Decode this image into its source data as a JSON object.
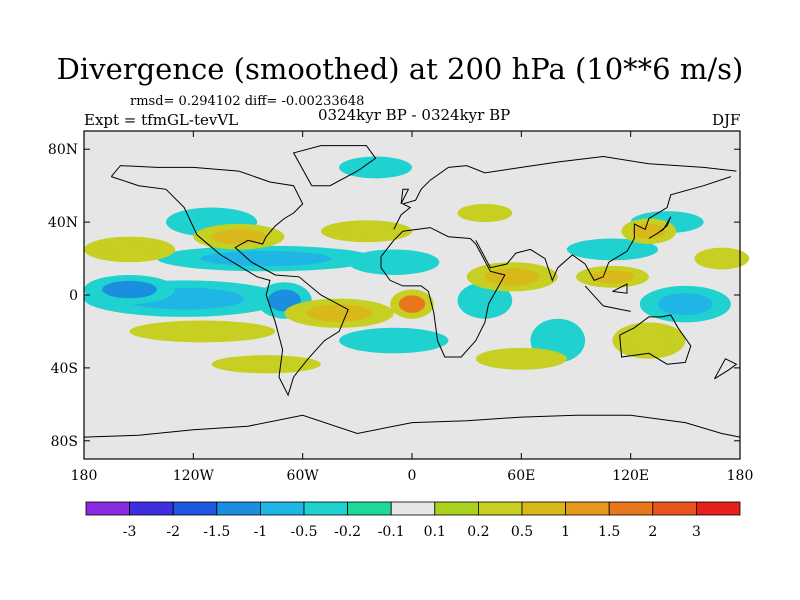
{
  "header": {
    "title": "Divergence (smoothed) at 200 hPa (10**6 m/s)",
    "stats": "rmsd= 0.294102 diff= -0.00233648",
    "expt": "Expt = tfmGL-tevVL",
    "period": "0324kyr BP - 0324kyr BP",
    "season": "DJF"
  },
  "colors": {
    "land_background": "#e6e6e6",
    "coastline": "#000000",
    "levels": [
      "#8a2be2",
      "#3d2fe0",
      "#1f58e0",
      "#1a8fe0",
      "#1fb6e6",
      "#1fd2cf",
      "#1ed89a",
      "#e6e6e6",
      "#a8d21e",
      "#c6cf22",
      "#d9b81c",
      "#e69a1c",
      "#e8771c",
      "#e9531c",
      "#e6201c"
    ]
  },
  "chart_data": {
    "type": "heatmap",
    "title": "Divergence (smoothed) at 200 hPa (10**6 m/s)",
    "xlabel": "",
    "ylabel": "",
    "xlim": [
      -180,
      180
    ],
    "ylim": [
      -90,
      90
    ],
    "x_ticks": [
      {
        "value": -180,
        "label": "180"
      },
      {
        "value": -120,
        "label": "120W"
      },
      {
        "value": -60,
        "label": "60W"
      },
      {
        "value": 0,
        "label": "0"
      },
      {
        "value": 60,
        "label": "60E"
      },
      {
        "value": 120,
        "label": "120E"
      },
      {
        "value": 180,
        "label": "180"
      }
    ],
    "y_ticks": [
      {
        "value": 80,
        "label": "80N"
      },
      {
        "value": 40,
        "label": "40N"
      },
      {
        "value": 0,
        "label": "0"
      },
      {
        "value": -40,
        "label": "40S"
      },
      {
        "value": -80,
        "label": "80S"
      }
    ],
    "colorbar": {
      "labels": [
        "-3",
        "-2",
        "-1.5",
        "-1",
        "-0.5",
        "-0.2",
        "-0.1",
        "0.1",
        "0.2",
        "0.5",
        "1",
        "1.5",
        "2",
        "3"
      ]
    },
    "regions": [
      {
        "lon": -125,
        "lat": -2,
        "rx": 55,
        "ry": 10,
        "value": -0.8
      },
      {
        "lon": -155,
        "lat": 3,
        "rx": 25,
        "ry": 8,
        "value": -1.2
      },
      {
        "lon": -70,
        "lat": -3,
        "rx": 15,
        "ry": 10,
        "value": -1.2
      },
      {
        "lon": -80,
        "lat": 20,
        "rx": 60,
        "ry": 7,
        "value": -0.6
      },
      {
        "lon": -10,
        "lat": 18,
        "rx": 25,
        "ry": 7,
        "value": -0.5
      },
      {
        "lon": 40,
        "lat": -3,
        "rx": 15,
        "ry": 10,
        "value": -0.5
      },
      {
        "lon": 110,
        "lat": 25,
        "rx": 25,
        "ry": 6,
        "value": -0.5
      },
      {
        "lon": 150,
        "lat": -5,
        "rx": 25,
        "ry": 10,
        "value": -1.0
      },
      {
        "lon": 140,
        "lat": 40,
        "rx": 20,
        "ry": 6,
        "value": -0.3
      },
      {
        "lon": -110,
        "lat": 40,
        "rx": 25,
        "ry": 8,
        "value": -0.5
      },
      {
        "lon": -20,
        "lat": 70,
        "rx": 20,
        "ry": 6,
        "value": -0.3
      },
      {
        "lon": -10,
        "lat": -25,
        "rx": 30,
        "ry": 7,
        "value": -0.4
      },
      {
        "lon": 80,
        "lat": -25,
        "rx": 15,
        "ry": 12,
        "value": -0.4
      },
      {
        "lon": -155,
        "lat": 25,
        "rx": 25,
        "ry": 7,
        "value": 0.4
      },
      {
        "lon": -95,
        "lat": 32,
        "rx": 25,
        "ry": 7,
        "value": 0.6
      },
      {
        "lon": -25,
        "lat": 35,
        "rx": 25,
        "ry": 6,
        "value": 0.4
      },
      {
        "lon": -40,
        "lat": -10,
        "rx": 30,
        "ry": 8,
        "value": 0.5
      },
      {
        "lon": 0,
        "lat": -5,
        "rx": 12,
        "ry": 8,
        "value": 1.5
      },
      {
        "lon": -115,
        "lat": -20,
        "rx": 40,
        "ry": 6,
        "value": 0.3
      },
      {
        "lon": -80,
        "lat": -38,
        "rx": 30,
        "ry": 5,
        "value": 0.2
      },
      {
        "lon": 55,
        "lat": 10,
        "rx": 25,
        "ry": 8,
        "value": 0.5
      },
      {
        "lon": 110,
        "lat": 10,
        "rx": 20,
        "ry": 6,
        "value": 0.6
      },
      {
        "lon": 130,
        "lat": 35,
        "rx": 15,
        "ry": 7,
        "value": 0.5
      },
      {
        "lon": 130,
        "lat": -25,
        "rx": 20,
        "ry": 10,
        "value": 0.4
      },
      {
        "lon": 170,
        "lat": 20,
        "rx": 15,
        "ry": 6,
        "value": 0.3
      },
      {
        "lon": 60,
        "lat": -35,
        "rx": 25,
        "ry": 6,
        "value": 0.3
      },
      {
        "lon": 40,
        "lat": 45,
        "rx": 15,
        "ry": 5,
        "value": 0.3
      }
    ]
  }
}
